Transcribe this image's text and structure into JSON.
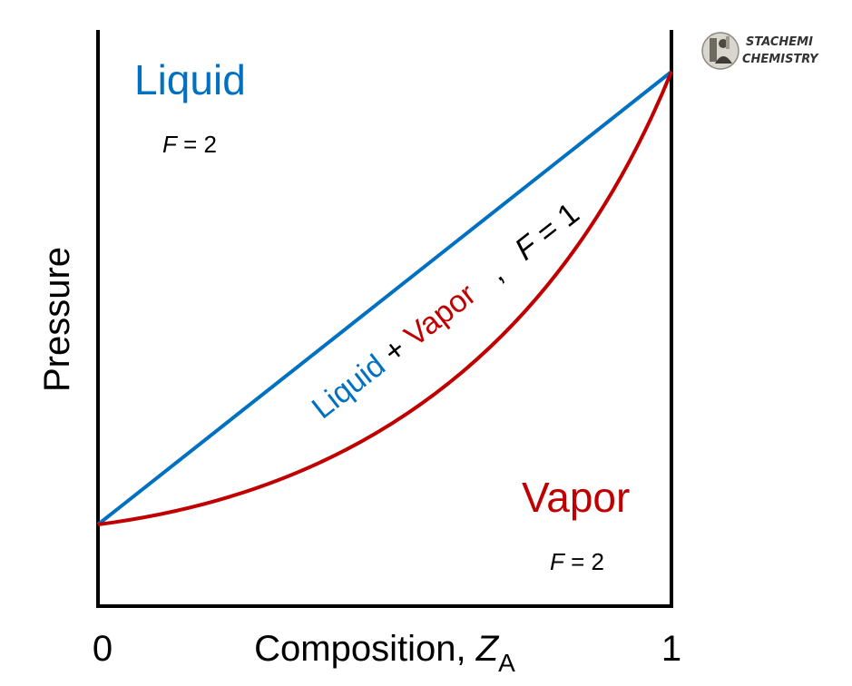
{
  "figure": {
    "y_axis_label": "Pressure",
    "x_axis_label": "Composition, ",
    "x_axis_var": "Z",
    "x_axis_sub": "A",
    "x_tick_min": "0",
    "x_tick_max": "1"
  },
  "regions": {
    "liquid": {
      "name": "Liquid",
      "dof_var": "F",
      "dof_rest": " = 2"
    },
    "vapor": {
      "name": "Vapor",
      "dof_var": "F",
      "dof_rest": " = 2"
    },
    "two_phase": {
      "liquid": "Liquid",
      "plus": " + ",
      "vapor": "Vapor",
      "sep": "   ,   ",
      "dof_var": "F",
      "dof_rest": " = 1"
    }
  },
  "brand": {
    "line1": "STACHEMI",
    "line2": "CHEMISTRY"
  },
  "colors": {
    "liquid": "#0070c0",
    "vapor": "#c00000",
    "axis": "#000000",
    "text": "#000000"
  },
  "icons": {
    "logo": "chemist-portrait-icon"
  }
}
